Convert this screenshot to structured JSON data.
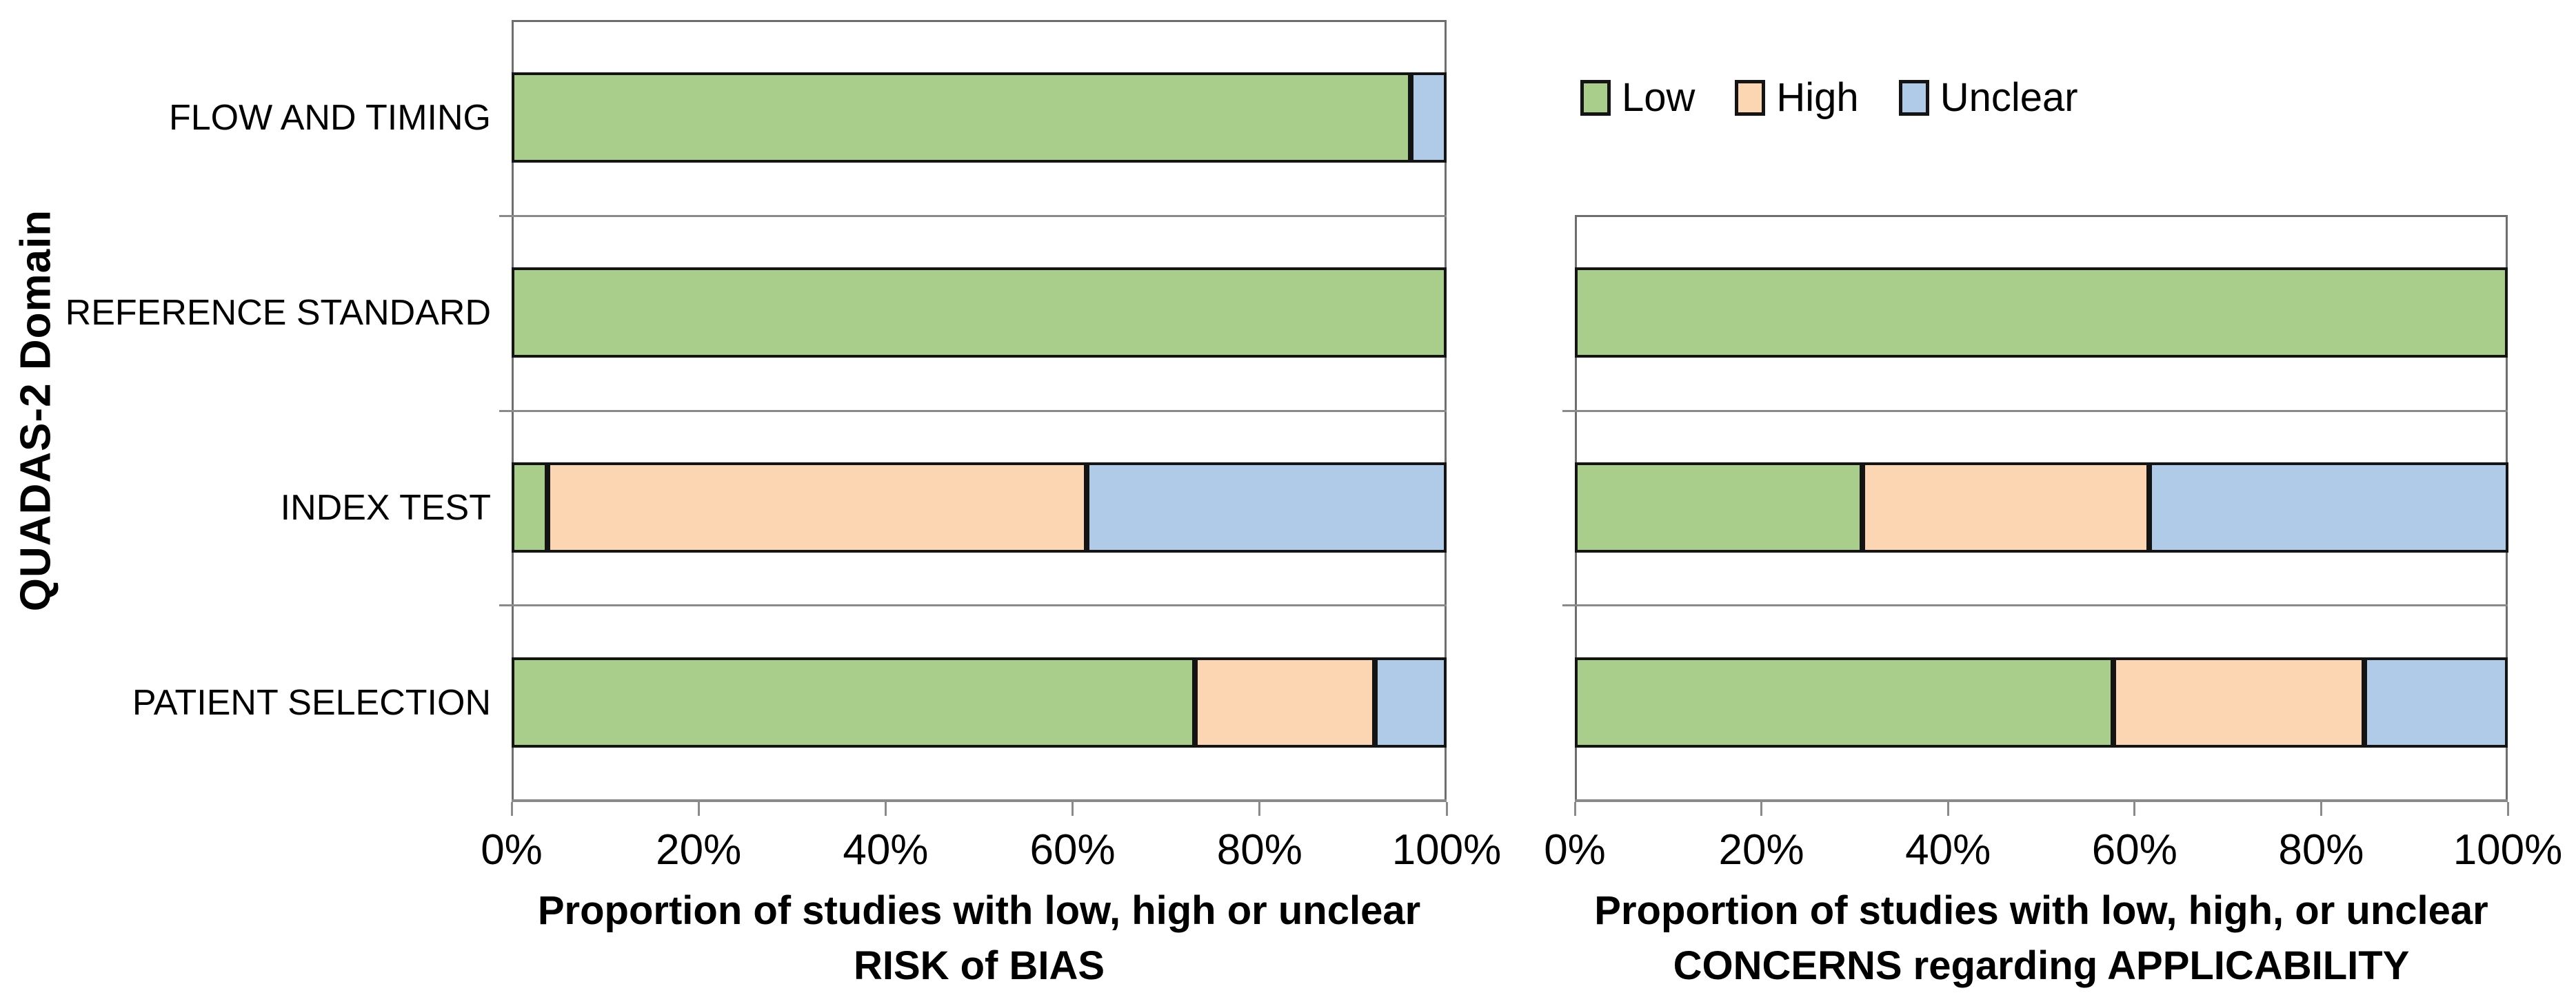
{
  "figure": {
    "y_axis_label": "QUADAS-2 Domain",
    "legend": {
      "items": [
        {
          "label": "Low",
          "color": "#a9ce8c"
        },
        {
          "label": "High",
          "color": "#fcd6b3"
        },
        {
          "label": "Unclear",
          "color": "#afcbe8"
        }
      ]
    }
  },
  "chart_data": [
    {
      "type": "bar",
      "subtype": "horizontal-stacked",
      "title": "Proportion of studies with low, high or unclear RISK of BIAS",
      "title_line1": "Proportion of studies with low, high or unclear",
      "title_line2": "RISK of BIAS",
      "categories": [
        "FLOW AND TIMING",
        "REFERENCE STANDARD",
        "INDEX TEST",
        "PATIENT SELECTION"
      ],
      "series": [
        {
          "name": "Low",
          "color": "#a9ce8c",
          "values": [
            96.2,
            100,
            3.8,
            73.1
          ]
        },
        {
          "name": "High",
          "color": "#fcd6b3",
          "values": [
            0,
            0,
            57.7,
            19.2
          ]
        },
        {
          "name": "Unclear",
          "color": "#afcbe8",
          "values": [
            3.8,
            0,
            38.5,
            7.7
          ]
        }
      ],
      "x_tick_labels": [
        "0%",
        "20%",
        "40%",
        "60%",
        "80%",
        "100%"
      ],
      "xlim": [
        0,
        100
      ],
      "legend_labels": [
        "Low",
        "High",
        "Unclear"
      ],
      "legend_position": "top right of figure",
      "grid": "horizontal category separators"
    },
    {
      "type": "bar",
      "subtype": "horizontal-stacked",
      "title": "Proportion of studies with low, high, or unclear CONCERNS regarding APPLICABILITY",
      "title_line1": "Proportion of studies with low, high, or unclear",
      "title_line2": "CONCERNS regarding APPLICABILITY",
      "categories": [
        "REFERENCE STANDARD",
        "INDEX TEST",
        "PATIENT SELECTION"
      ],
      "series": [
        {
          "name": "Low",
          "color": "#a9ce8c",
          "values": [
            100,
            30.8,
            57.7
          ]
        },
        {
          "name": "High",
          "color": "#fcd6b3",
          "values": [
            0,
            30.8,
            26.9
          ]
        },
        {
          "name": "Unclear",
          "color": "#afcbe8",
          "values": [
            0,
            38.5,
            15.4
          ]
        }
      ],
      "x_tick_labels": [
        "0%",
        "20%",
        "40%",
        "60%",
        "80%",
        "100%"
      ],
      "xlim": [
        0,
        100
      ],
      "legend_labels": [
        "Low",
        "High",
        "Unclear"
      ],
      "legend_position": "top right of figure",
      "grid": "horizontal category separators"
    }
  ]
}
